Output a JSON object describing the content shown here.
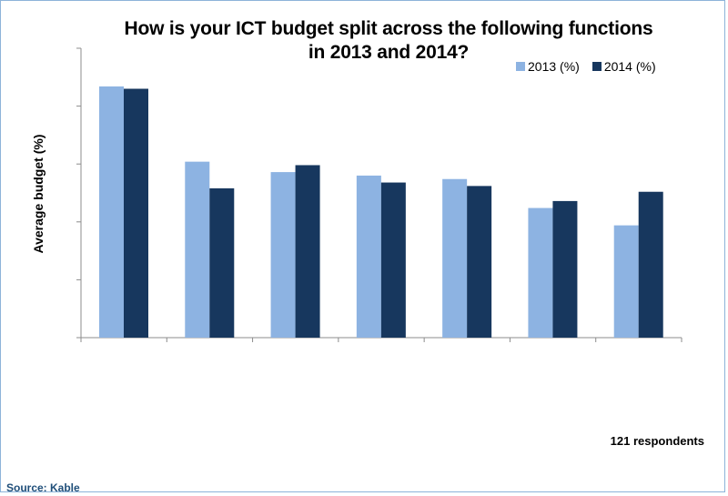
{
  "chart_data": {
    "type": "bar",
    "title": "How is your ICT budget split across the following functions in 2013 and 2014?",
    "title_lines": [
      "How is your ICT budget split across the following functions",
      "in 2013 and 2014?"
    ],
    "ylabel": "Average budget (%)",
    "xlabel": "",
    "categories": [
      "",
      "",
      "",
      "",
      "",
      "",
      ""
    ],
    "series": [
      {
        "name": "2013 (%)",
        "color": "#8db3e2",
        "values": [
          21.7,
          15.2,
          14.3,
          14.0,
          13.7,
          11.2,
          9.7
        ]
      },
      {
        "name": "2014 (%)",
        "color": "#17375e",
        "values": [
          21.5,
          12.9,
          14.9,
          13.4,
          13.1,
          11.8,
          12.6
        ]
      }
    ],
    "ylim": [
      0,
      25
    ],
    "gridlines": false,
    "legend_position": "top-right"
  },
  "annotations": {
    "respondents": "121 respondents",
    "source": "Source: Kable"
  }
}
